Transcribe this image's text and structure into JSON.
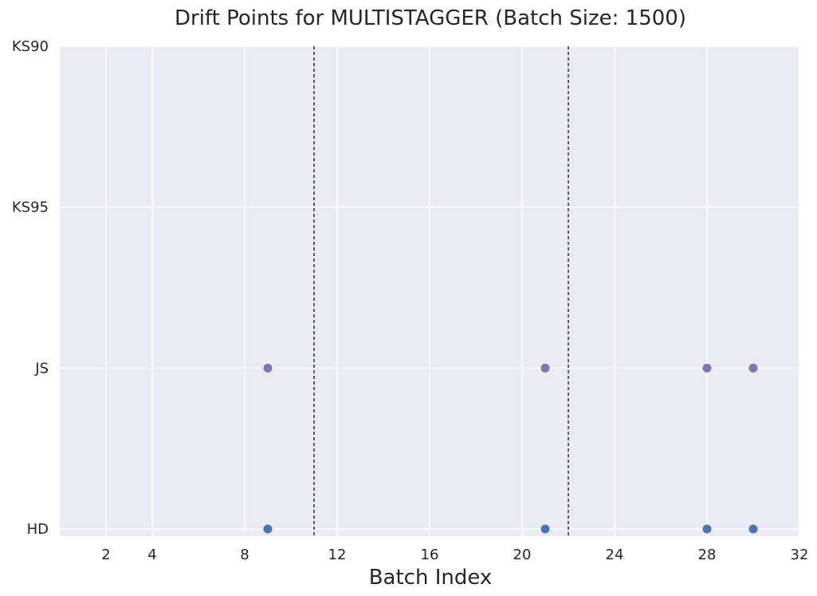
{
  "chart_data": {
    "type": "scatter",
    "title": "Drift Points for MULTISTAGGER (Batch Size: 1500)",
    "xlabel": "Batch Index",
    "ylabel": "",
    "xlim": [
      0,
      32
    ],
    "xticks": [
      2,
      4,
      8,
      12,
      16,
      20,
      24,
      28,
      32
    ],
    "y_categories": [
      "HD",
      "JS",
      "KS95",
      "KS90"
    ],
    "grid": true,
    "background": "#eaeaf2",
    "vertical_lines": [
      {
        "x": 11,
        "style": "dashed",
        "color": "#000000"
      },
      {
        "x": 22,
        "style": "dashed",
        "color": "#000000"
      }
    ],
    "series": [
      {
        "category": "HD",
        "color": "#4c72b0",
        "x": [
          9,
          21,
          28,
          30
        ]
      },
      {
        "category": "JS",
        "color": "#8172b3",
        "x": [
          9,
          21,
          28,
          30
        ]
      },
      {
        "category": "KS95",
        "color": "#55a868",
        "x": []
      },
      {
        "category": "KS90",
        "color": "#c44e52",
        "x": []
      }
    ]
  }
}
